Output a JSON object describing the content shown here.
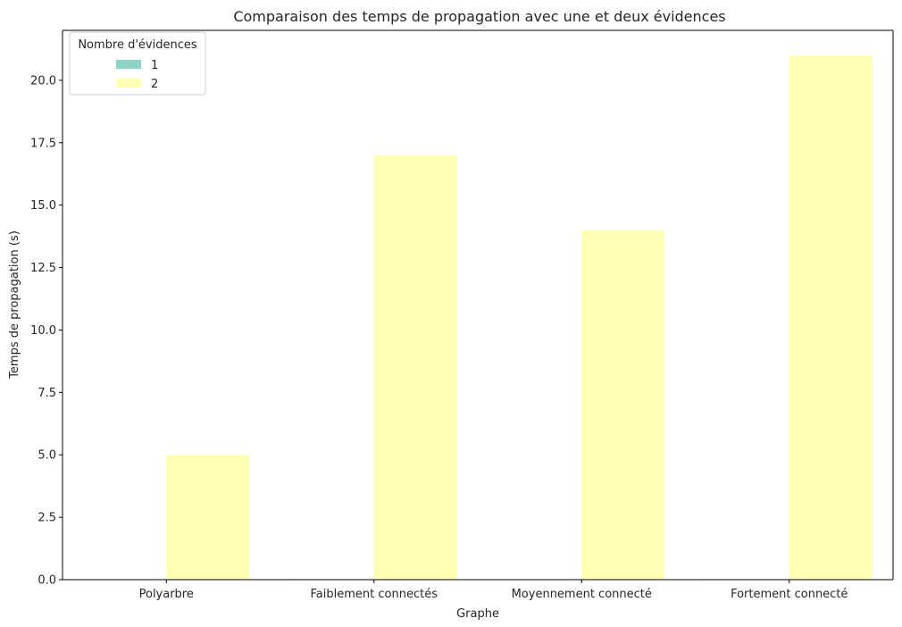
{
  "chart_data": {
    "type": "bar",
    "title": "Comparaison des temps de propagation avec une et deux évidences",
    "xlabel": "Graphe",
    "ylabel": "Temps de propagation (s)",
    "categories": [
      "Polyarbre",
      "Faiblement connectés",
      "Moyennement connecté",
      "Fortement connecté"
    ],
    "series": [
      {
        "name": "1",
        "values": [
          0,
          0.02,
          0,
          0.02
        ],
        "color": "#8dd3c7"
      },
      {
        "name": "2",
        "values": [
          5,
          17,
          14,
          21
        ],
        "color": "#ffffb3"
      }
    ],
    "ylim": [
      0,
      22
    ],
    "yticks": [
      "0.0",
      "2.5",
      "5.0",
      "7.5",
      "10.0",
      "12.5",
      "15.0",
      "17.5",
      "20.0"
    ],
    "grid": false,
    "legend": {
      "title": "Nombre d'évidences",
      "placement": "top-left"
    }
  }
}
